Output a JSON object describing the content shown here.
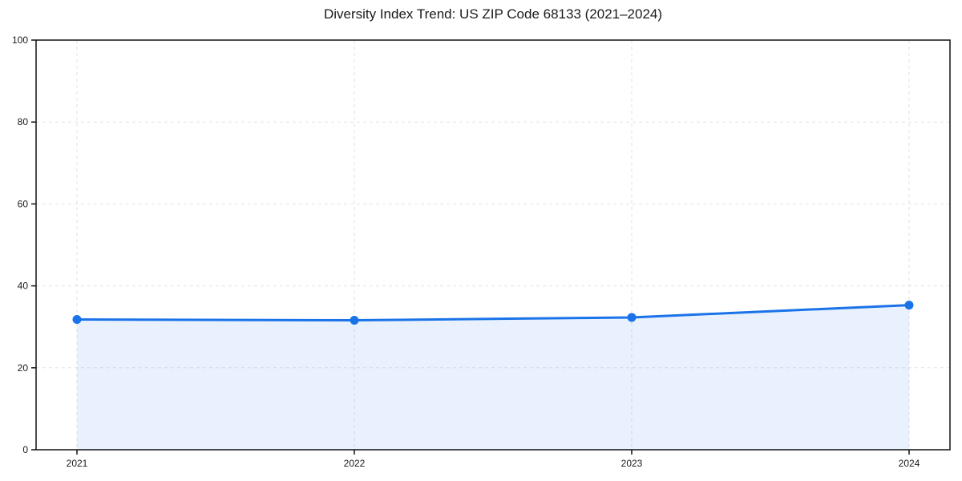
{
  "chart_data": {
    "type": "line",
    "title": "Diversity Index Trend: US ZIP Code 68133 (2021–2024)",
    "x": [
      2021,
      2022,
      2023,
      2024
    ],
    "xticks": [
      "2021",
      "2022",
      "2023",
      "2024"
    ],
    "series": [
      {
        "name": "Diversity Index",
        "values": [
          31.8,
          31.6,
          32.3,
          35.3
        ]
      }
    ],
    "xlabel": "",
    "ylabel": "",
    "ylim": [
      0,
      100
    ],
    "yticks": [
      0,
      20,
      40,
      60,
      80,
      100
    ],
    "grid": true,
    "grid_style": "dashed",
    "legend_position": "none",
    "area_fill": true,
    "marker": "circle",
    "colors": {
      "line": "#1a73e8",
      "marker": "#1a73e8",
      "area_fill": "rgba(26,115,232,0.10)",
      "grid": "#e2e2e2",
      "spine": "#111111",
      "tick_label": "#1a1a1a",
      "background": "#ffffff"
    }
  }
}
